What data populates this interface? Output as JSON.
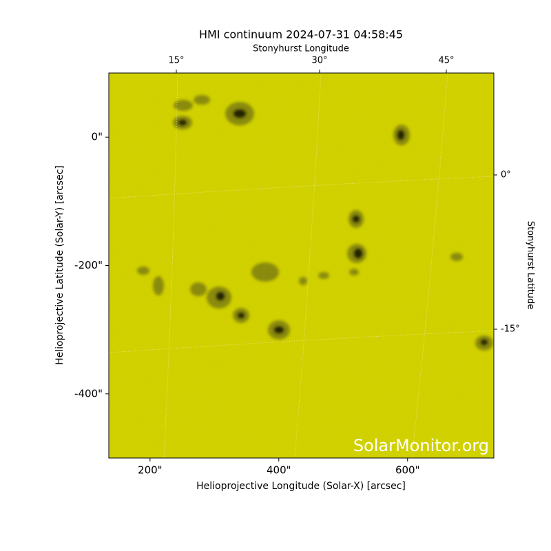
{
  "chart_data": {
    "type": "image",
    "title": "HMI continuum 2024-07-31 04:58:45",
    "xlabel": "Helioprojective Longitude (Solar-X) [arcsec]",
    "ylabel": "Helioprojective Latitude (Solar-Y) [arcsec]",
    "x2label": "Stonyhurst Longitude",
    "y2label": "Stonyhurst Latitude",
    "watermark": "SolarMonitor.org",
    "xlim": [
      136,
      734
    ],
    "ylim": [
      -500,
      100
    ],
    "xticks": [
      {
        "value": 200,
        "label": "200\""
      },
      {
        "value": 400,
        "label": "400\""
      },
      {
        "value": 600,
        "label": "600\""
      }
    ],
    "yticks": [
      {
        "value": 0,
        "label": "0\""
      },
      {
        "value": -200,
        "label": "-200\""
      },
      {
        "value": -400,
        "label": "-400\""
      }
    ],
    "x2ticks": [
      {
        "value": 15,
        "label": "15°"
      },
      {
        "value": 30,
        "label": "30°"
      },
      {
        "value": 45,
        "label": "45°"
      }
    ],
    "y2ticks": [
      {
        "value": 0,
        "label": "0°"
      },
      {
        "value": -15,
        "label": "-15°"
      }
    ],
    "color": "#cccc00"
  }
}
